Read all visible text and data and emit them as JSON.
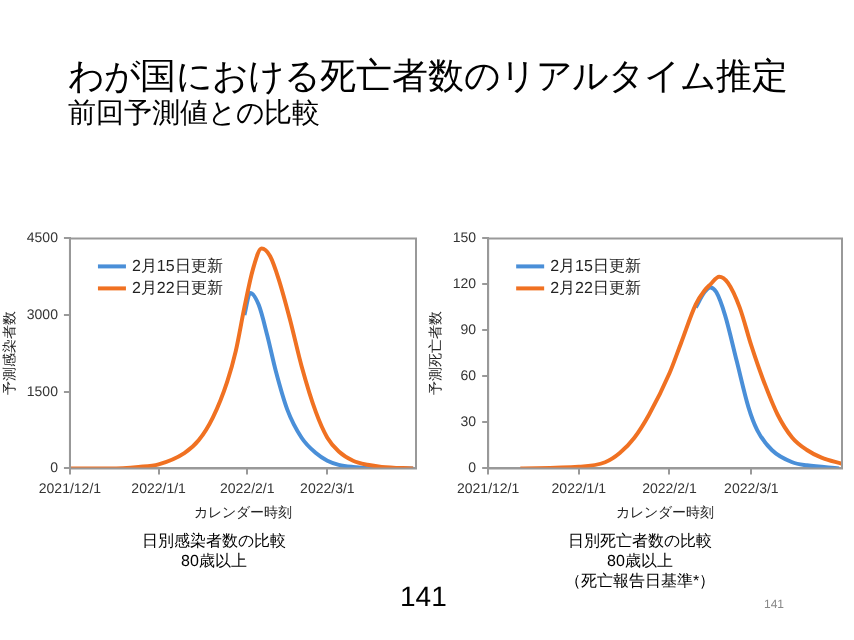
{
  "chart_data": [
    {
      "type": "line",
      "title": "わが国における死亡者数のリアルタイム推定",
      "subtitle": "前回予測値との比較",
      "xlabel": "カレンダー時刻",
      "ylabel": "予測感染者数",
      "annotations": [
        "日別感染者数の比較",
        "80歳以上"
      ],
      "xlim": [
        "2021-12-01",
        "2022-04-01"
      ],
      "xticks": [
        {
          "value": "2021-12-01",
          "label": "2021/12/1"
        },
        {
          "value": "2022-01-01",
          "label": "2022/1/1"
        },
        {
          "value": "2022-02-01",
          "label": "2022/2/1"
        },
        {
          "value": "2022-03-01",
          "label": "2022/3/1"
        }
      ],
      "ylim": [
        0,
        4500
      ],
      "yticks": [
        0,
        1500,
        3000,
        4500
      ],
      "grid": false,
      "legend": "top left",
      "marker": "none",
      "series": [
        {
          "name": "2月15日更新",
          "color": "#4a8fd8",
          "x": [
            "2022-01-31",
            "2022-02-02",
            "2022-02-05",
            "2022-02-08",
            "2022-02-11",
            "2022-02-15",
            "2022-02-20",
            "2022-02-25",
            "2022-03-01",
            "2022-03-05",
            "2022-03-10",
            "2022-03-20",
            "2022-03-31"
          ],
          "values": [
            3000,
            3430,
            3200,
            2600,
            1900,
            1150,
            600,
            300,
            150,
            70,
            30,
            0,
            0
          ]
        },
        {
          "name": "2月22日更新",
          "color": "#f07122",
          "x": [
            "2021-12-01",
            "2021-12-15",
            "2021-12-25",
            "2022-01-01",
            "2022-01-10",
            "2022-01-15",
            "2022-01-20",
            "2022-01-25",
            "2022-01-28",
            "2022-01-31",
            "2022-02-03",
            "2022-02-06",
            "2022-02-09",
            "2022-02-12",
            "2022-02-16",
            "2022-02-20",
            "2022-02-25",
            "2022-03-01",
            "2022-03-05",
            "2022-03-10",
            "2022-03-15",
            "2022-03-20",
            "2022-03-31"
          ],
          "values": [
            0,
            0,
            30,
            80,
            300,
            550,
            1000,
            1700,
            2300,
            3150,
            3900,
            4300,
            4150,
            3700,
            2900,
            2000,
            1100,
            600,
            330,
            150,
            70,
            30,
            0
          ]
        }
      ]
    },
    {
      "type": "line",
      "xlabel": "カレンダー時刻",
      "ylabel": "予測死亡者数",
      "annotations": [
        "日別死亡者数の比較",
        "80歳以上",
        "（死亡報告日基準*）",
        "141",
        "141"
      ],
      "xlim": [
        "2021-12-01",
        "2022-04-01"
      ],
      "xticks": [
        {
          "value": "2021-12-01",
          "label": "2021/12/1"
        },
        {
          "value": "2022-01-01",
          "label": "2022/1/1"
        },
        {
          "value": "2022-02-01",
          "label": "2022/2/1"
        },
        {
          "value": "2022-03-01",
          "label": "2022/3/1"
        }
      ],
      "ylim": [
        0,
        150
      ],
      "yticks": [
        0,
        30,
        60,
        90,
        120,
        150
      ],
      "grid": false,
      "legend": "top left",
      "marker": "none",
      "series": [
        {
          "name": "2月15日更新",
          "color": "#4a8fd8",
          "x": [
            "2022-02-10",
            "2022-02-13",
            "2022-02-15",
            "2022-02-17",
            "2022-02-20",
            "2022-02-24",
            "2022-02-28",
            "2022-03-03",
            "2022-03-08",
            "2022-03-15",
            "2022-03-20",
            "2022-03-31"
          ],
          "values": [
            105,
            115,
            118,
            115,
            100,
            70,
            40,
            25,
            12,
            4,
            2,
            0
          ]
        },
        {
          "name": "2月22日更新",
          "color": "#f07122",
          "x": [
            "2021-12-12",
            "2022-01-01",
            "2022-01-10",
            "2022-01-15",
            "2022-01-20",
            "2022-01-25",
            "2022-02-01",
            "2022-02-05",
            "2022-02-10",
            "2022-02-13",
            "2022-02-15",
            "2022-02-18",
            "2022-02-21",
            "2022-02-25",
            "2022-03-01",
            "2022-03-05",
            "2022-03-10",
            "2022-03-15",
            "2022-03-20",
            "2022-03-25",
            "2022-04-01"
          ],
          "values": [
            0,
            1,
            4,
            10,
            20,
            35,
            62,
            82,
            107,
            116,
            120,
            125,
            121,
            105,
            80,
            58,
            35,
            20,
            12,
            7,
            3
          ]
        }
      ]
    }
  ]
}
